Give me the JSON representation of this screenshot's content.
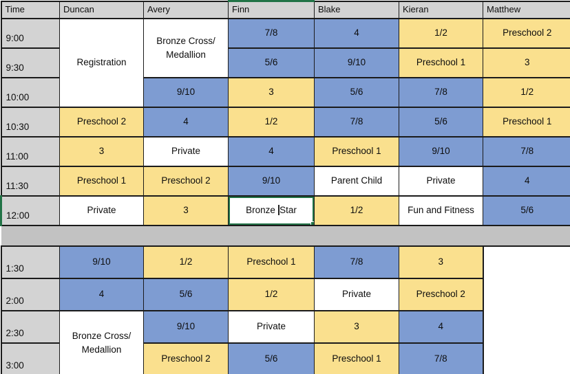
{
  "palette": {
    "blue": "#7E9CD2",
    "yellow": "#FAE08E",
    "white": "#FFFFFF",
    "header_gray": "#D3D3D3",
    "time_gray": "#D3D3D3",
    "separator_gray": "#C2C2C2",
    "grid_black": "#1A1A1A",
    "selection_green": "#217346"
  },
  "columns": [
    {
      "key": "time",
      "label": "Time"
    },
    {
      "key": "duncan",
      "label": "Duncan"
    },
    {
      "key": "avery",
      "label": "Avery"
    },
    {
      "key": "finn",
      "label": "Finn"
    },
    {
      "key": "blake",
      "label": "Blake"
    },
    {
      "key": "kieran",
      "label": "Kieran"
    },
    {
      "key": "matthew",
      "label": "Matthew"
    }
  ],
  "selection": {
    "column_key": "finn",
    "row_time": "12:00",
    "cell_text": "Bronze Star",
    "text_before_caret": "Bronze ",
    "text_after_caret": "Star"
  },
  "blocks": [
    {
      "name": "morning",
      "rows": [
        {
          "time": "9:00",
          "cells": [
            {
              "col": "duncan",
              "text": "Registration",
              "color": "white",
              "rowspan": 3
            },
            {
              "col": "avery",
              "text": "Bronze Cross/\nMedallion",
              "color": "white",
              "rowspan": 2
            },
            {
              "col": "finn",
              "text": "7/8",
              "color": "blue"
            },
            {
              "col": "blake",
              "text": "4",
              "color": "blue"
            },
            {
              "col": "kieran",
              "text": "1/2",
              "color": "yellow"
            },
            {
              "col": "matthew",
              "text": "Preschool 2",
              "color": "yellow"
            }
          ]
        },
        {
          "time": "9:30",
          "cells": [
            {
              "col": "finn",
              "text": "5/6",
              "color": "blue"
            },
            {
              "col": "blake",
              "text": "9/10",
              "color": "blue"
            },
            {
              "col": "kieran",
              "text": "Preschool 1",
              "color": "yellow"
            },
            {
              "col": "matthew",
              "text": "3",
              "color": "yellow"
            }
          ]
        },
        {
          "time": "10:00",
          "cells": [
            {
              "col": "avery",
              "text": "9/10",
              "color": "blue"
            },
            {
              "col": "finn",
              "text": "3",
              "color": "yellow"
            },
            {
              "col": "blake",
              "text": "5/6",
              "color": "blue"
            },
            {
              "col": "kieran",
              "text": "7/8",
              "color": "blue"
            },
            {
              "col": "matthew",
              "text": "1/2",
              "color": "yellow"
            }
          ]
        },
        {
          "time": "10:30",
          "cells": [
            {
              "col": "duncan",
              "text": "Preschool 2",
              "color": "yellow"
            },
            {
              "col": "avery",
              "text": "4",
              "color": "blue"
            },
            {
              "col": "finn",
              "text": "1/2",
              "color": "yellow"
            },
            {
              "col": "blake",
              "text": "7/8",
              "color": "blue"
            },
            {
              "col": "kieran",
              "text": "5/6",
              "color": "blue"
            },
            {
              "col": "matthew",
              "text": "Preschool 1",
              "color": "yellow"
            }
          ]
        },
        {
          "time": "11:00",
          "cells": [
            {
              "col": "duncan",
              "text": "3",
              "color": "yellow"
            },
            {
              "col": "avery",
              "text": "Private",
              "color": "white"
            },
            {
              "col": "finn",
              "text": "4",
              "color": "blue"
            },
            {
              "col": "blake",
              "text": "Preschool 1",
              "color": "yellow"
            },
            {
              "col": "kieran",
              "text": "9/10",
              "color": "blue"
            },
            {
              "col": "matthew",
              "text": "7/8",
              "color": "blue"
            }
          ]
        },
        {
          "time": "11:30",
          "cells": [
            {
              "col": "duncan",
              "text": "Preschool 1",
              "color": "yellow"
            },
            {
              "col": "avery",
              "text": "Preschool 2",
              "color": "yellow"
            },
            {
              "col": "finn",
              "text": "9/10",
              "color": "blue"
            },
            {
              "col": "blake",
              "text": "Parent Child",
              "color": "white"
            },
            {
              "col": "kieran",
              "text": "Private",
              "color": "white"
            },
            {
              "col": "matthew",
              "text": "4",
              "color": "blue"
            }
          ]
        },
        {
          "time": "12:00",
          "cells": [
            {
              "col": "duncan",
              "text": "Private",
              "color": "white"
            },
            {
              "col": "avery",
              "text": "3",
              "color": "yellow"
            },
            {
              "col": "finn",
              "text": "Bronze Star",
              "color": "white",
              "selected": true
            },
            {
              "col": "blake",
              "text": "1/2",
              "color": "yellow"
            },
            {
              "col": "kieran",
              "text": "Fun and Fitness",
              "color": "white"
            },
            {
              "col": "matthew",
              "text": "5/6",
              "color": "blue"
            }
          ]
        }
      ]
    },
    {
      "name": "afternoon",
      "rows": [
        {
          "time": "1:30",
          "cells": [
            {
              "col": "duncan",
              "text": "9/10",
              "color": "blue"
            },
            {
              "col": "avery",
              "text": "1/2",
              "color": "yellow"
            },
            {
              "col": "finn",
              "text": "Preschool 1",
              "color": "yellow"
            },
            {
              "col": "blake",
              "text": "7/8",
              "color": "blue"
            },
            {
              "col": "kieran",
              "text": "3",
              "color": "yellow"
            },
            {
              "col": "matthew",
              "text": "",
              "color": "white",
              "rowspan": 4,
              "empty": true
            }
          ]
        },
        {
          "time": "2:00",
          "cells": [
            {
              "col": "duncan",
              "text": "4",
              "color": "blue"
            },
            {
              "col": "avery",
              "text": "5/6",
              "color": "blue"
            },
            {
              "col": "finn",
              "text": "1/2",
              "color": "yellow"
            },
            {
              "col": "blake",
              "text": "Private",
              "color": "white"
            },
            {
              "col": "kieran",
              "text": "Preschool 2",
              "color": "yellow"
            }
          ]
        },
        {
          "time": "2:30",
          "cells": [
            {
              "col": "duncan",
              "text": "Bronze Cross/\nMedallion",
              "color": "white",
              "rowspan": 2
            },
            {
              "col": "avery",
              "text": "9/10",
              "color": "blue"
            },
            {
              "col": "finn",
              "text": "Private",
              "color": "white"
            },
            {
              "col": "blake",
              "text": "3",
              "color": "yellow"
            },
            {
              "col": "kieran",
              "text": "4",
              "color": "blue"
            }
          ]
        },
        {
          "time": "3:00",
          "cells": [
            {
              "col": "avery",
              "text": "Preschool 2",
              "color": "yellow"
            },
            {
              "col": "finn",
              "text": "5/6",
              "color": "blue"
            },
            {
              "col": "blake",
              "text": "Preschool 1",
              "color": "yellow"
            },
            {
              "col": "kieran",
              "text": "7/8",
              "color": "blue"
            }
          ]
        }
      ]
    }
  ]
}
